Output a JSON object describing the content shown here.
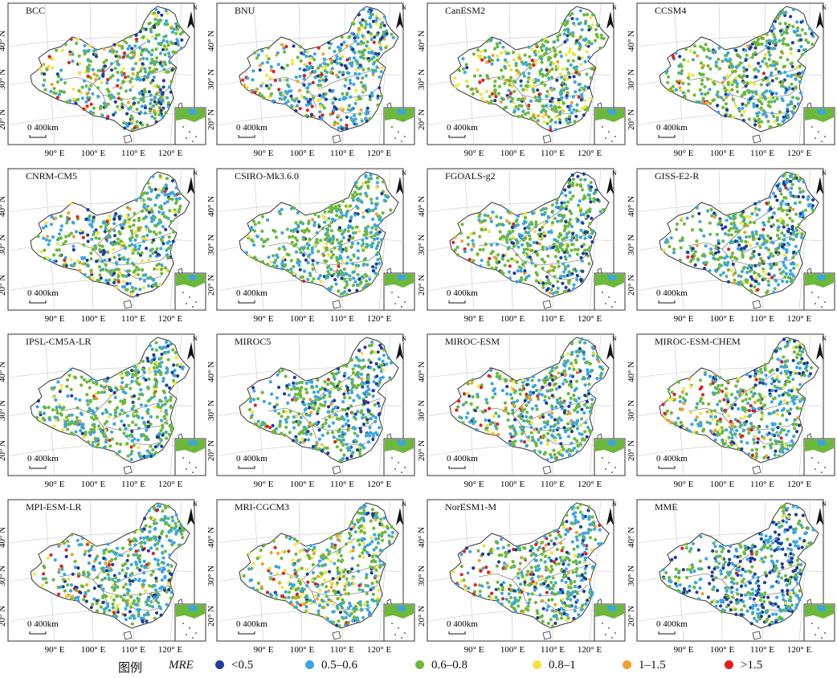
{
  "legend": {
    "title": "图例",
    "variable": "MRE",
    "classes": [
      {
        "label": "<0.5",
        "color": "#1f3c99"
      },
      {
        "label": "0.5–0.6",
        "color": "#3aa6e0"
      },
      {
        "label": "0.6–0.8",
        "color": "#6cb83a"
      },
      {
        "label": "0.8–1",
        "color": "#f0e442"
      },
      {
        "label": "1–1.5",
        "color": "#f0a030"
      },
      {
        "label": ">1.5",
        "color": "#e02020"
      }
    ]
  },
  "axes": {
    "lon_ticks": [
      "90° E",
      "100° E",
      "110° E",
      "120° E"
    ],
    "lat_ticks": [
      "40° N",
      "30° N",
      "20° N"
    ],
    "scale_bar": "0 400km",
    "north_arrow": "N"
  },
  "panels": [
    {
      "title": "BCC",
      "mix": [
        0.12,
        0.25,
        0.45,
        0.08,
        0.05,
        0.05
      ]
    },
    {
      "title": "BNU",
      "mix": [
        0.15,
        0.35,
        0.25,
        0.1,
        0.08,
        0.07
      ]
    },
    {
      "title": "CanESM2",
      "mix": [
        0.06,
        0.2,
        0.5,
        0.14,
        0.06,
        0.04
      ]
    },
    {
      "title": "CCSM4",
      "mix": [
        0.12,
        0.25,
        0.5,
        0.06,
        0.04,
        0.03
      ]
    },
    {
      "title": "CNRM-CM5",
      "mix": [
        0.1,
        0.3,
        0.45,
        0.1,
        0.03,
        0.02
      ]
    },
    {
      "title": "CSIRO-Mk3.6.0",
      "mix": [
        0.08,
        0.3,
        0.55,
        0.05,
        0.01,
        0.01
      ]
    },
    {
      "title": "FGOALS-g2",
      "mix": [
        0.12,
        0.22,
        0.55,
        0.06,
        0.03,
        0.02
      ]
    },
    {
      "title": "GISS-E2-R",
      "mix": [
        0.15,
        0.3,
        0.4,
        0.06,
        0.04,
        0.05
      ]
    },
    {
      "title": "IPSL-CM5A-LR",
      "mix": [
        0.08,
        0.3,
        0.5,
        0.08,
        0.02,
        0.02
      ]
    },
    {
      "title": "MIROC5",
      "mix": [
        0.15,
        0.3,
        0.47,
        0.04,
        0.02,
        0.02
      ]
    },
    {
      "title": "MIROC-ESM",
      "mix": [
        0.1,
        0.3,
        0.4,
        0.08,
        0.06,
        0.06
      ]
    },
    {
      "title": "MIROC-ESM-CHEM",
      "mix": [
        0.1,
        0.3,
        0.4,
        0.08,
        0.06,
        0.06
      ]
    },
    {
      "title": "MPI-ESM-LR",
      "mix": [
        0.12,
        0.35,
        0.4,
        0.05,
        0.03,
        0.05
      ]
    },
    {
      "title": "MRI-CGCM3",
      "mix": [
        0.05,
        0.3,
        0.35,
        0.18,
        0.07,
        0.05
      ]
    },
    {
      "title": "NorESM1-M",
      "mix": [
        0.12,
        0.3,
        0.4,
        0.06,
        0.05,
        0.07
      ]
    },
    {
      "title": "MME",
      "mix": [
        0.3,
        0.35,
        0.3,
        0.03,
        0.01,
        0.01
      ]
    }
  ]
}
